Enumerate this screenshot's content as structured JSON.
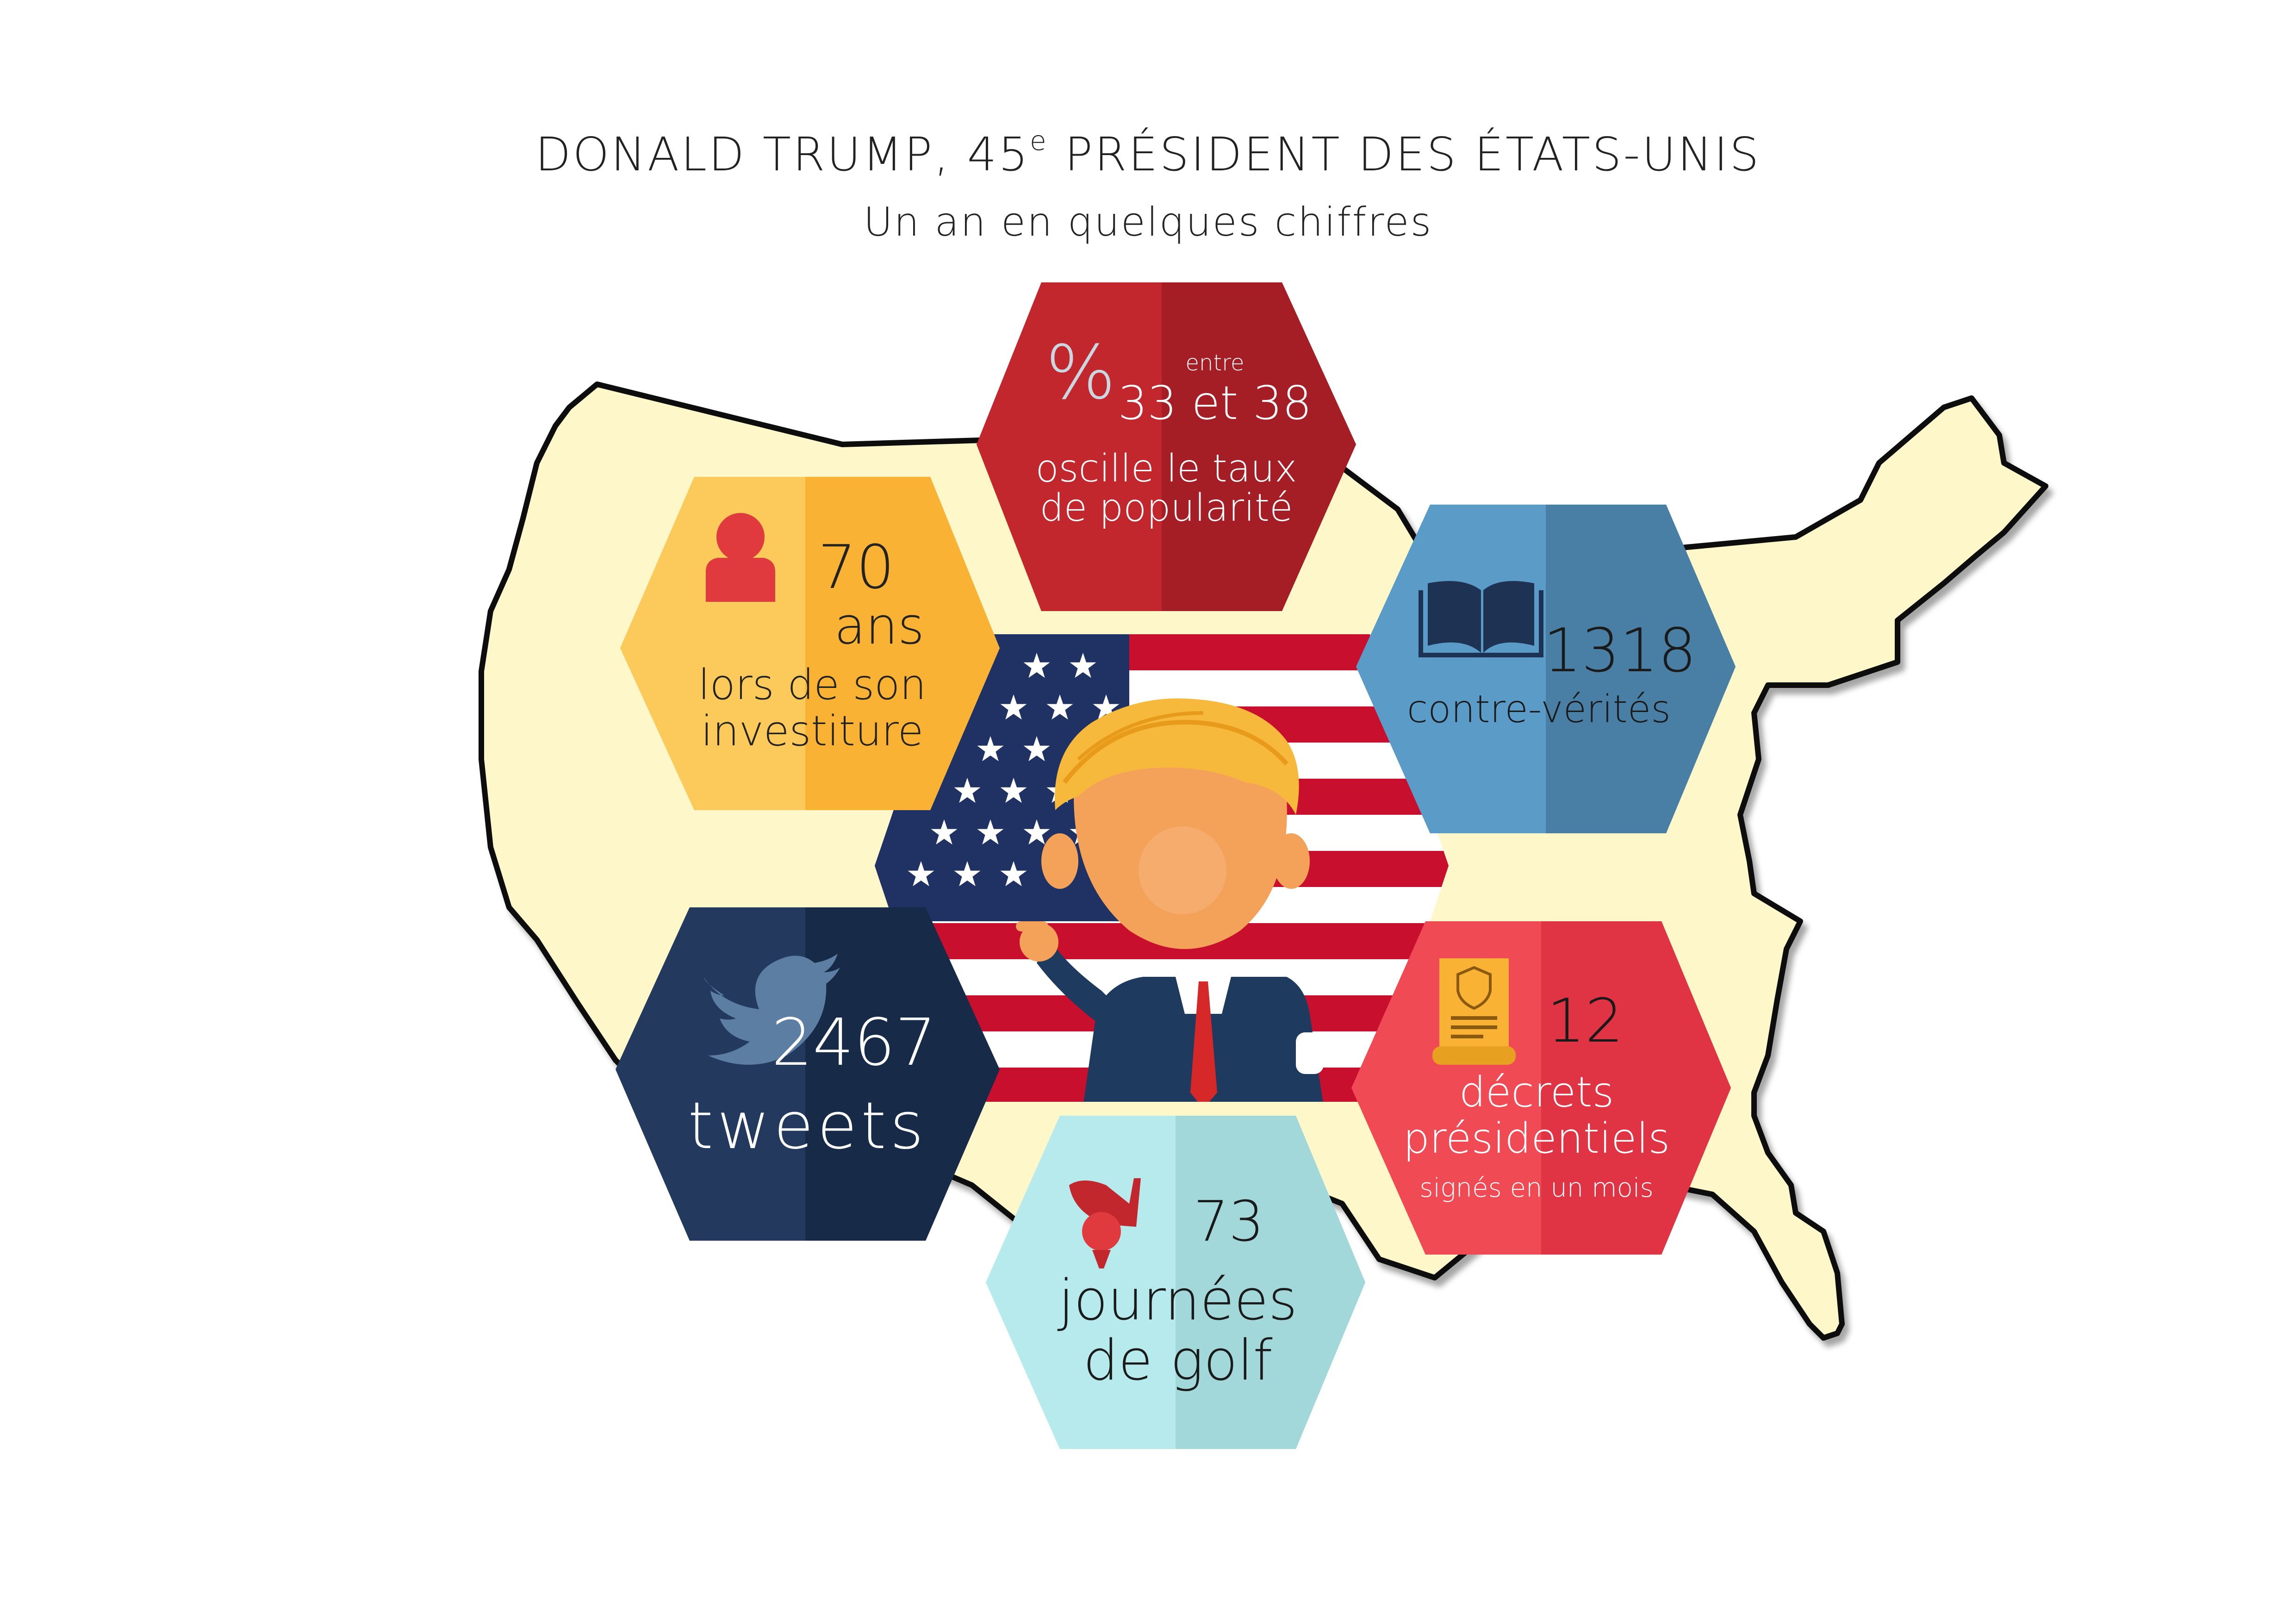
{
  "header": {
    "title_main": "DONALD TRUMP, 45",
    "title_sup": "e",
    "title_rest": " PRÉSIDENT DES ÉTATS-UNIS",
    "subtitle": "Un an en quelques chiffres"
  },
  "colors": {
    "map_fill": "#fdf7c9",
    "map_outline": "#0a0a0a",
    "popularity": "#c1272d",
    "age": "#f9b233",
    "falsehoods": "#4e88b4",
    "tweets": "#1e3354",
    "decrees": "#e63946",
    "golf": "#b2e6e8",
    "flag_red": "#c8102e",
    "flag_blue": "#1f3263"
  },
  "hexes": {
    "popularity": {
      "icon": "percent-icon",
      "icon_text": "%",
      "prefix": "entre",
      "number": "33 et 38",
      "line1": "oscille le taux",
      "line2": "de popularité"
    },
    "age": {
      "icon": "person-icon",
      "number": "70",
      "unit": "ans",
      "line1": "lors de son",
      "line2": "investiture"
    },
    "falsehoods": {
      "icon": "book-icon",
      "number": "1318",
      "line1": "contre-vérités"
    },
    "tweets": {
      "icon": "twitter-bird-icon",
      "number": "2467",
      "unit": "tweets"
    },
    "decrees": {
      "icon": "decree-scroll-icon",
      "number": "12",
      "line1": "décrets",
      "line2": "présidentiels",
      "line3": "signés en un mois"
    },
    "golf": {
      "icon": "golf-club-ball-icon",
      "number": "73",
      "line1": "journées",
      "line2": "de golf"
    }
  }
}
